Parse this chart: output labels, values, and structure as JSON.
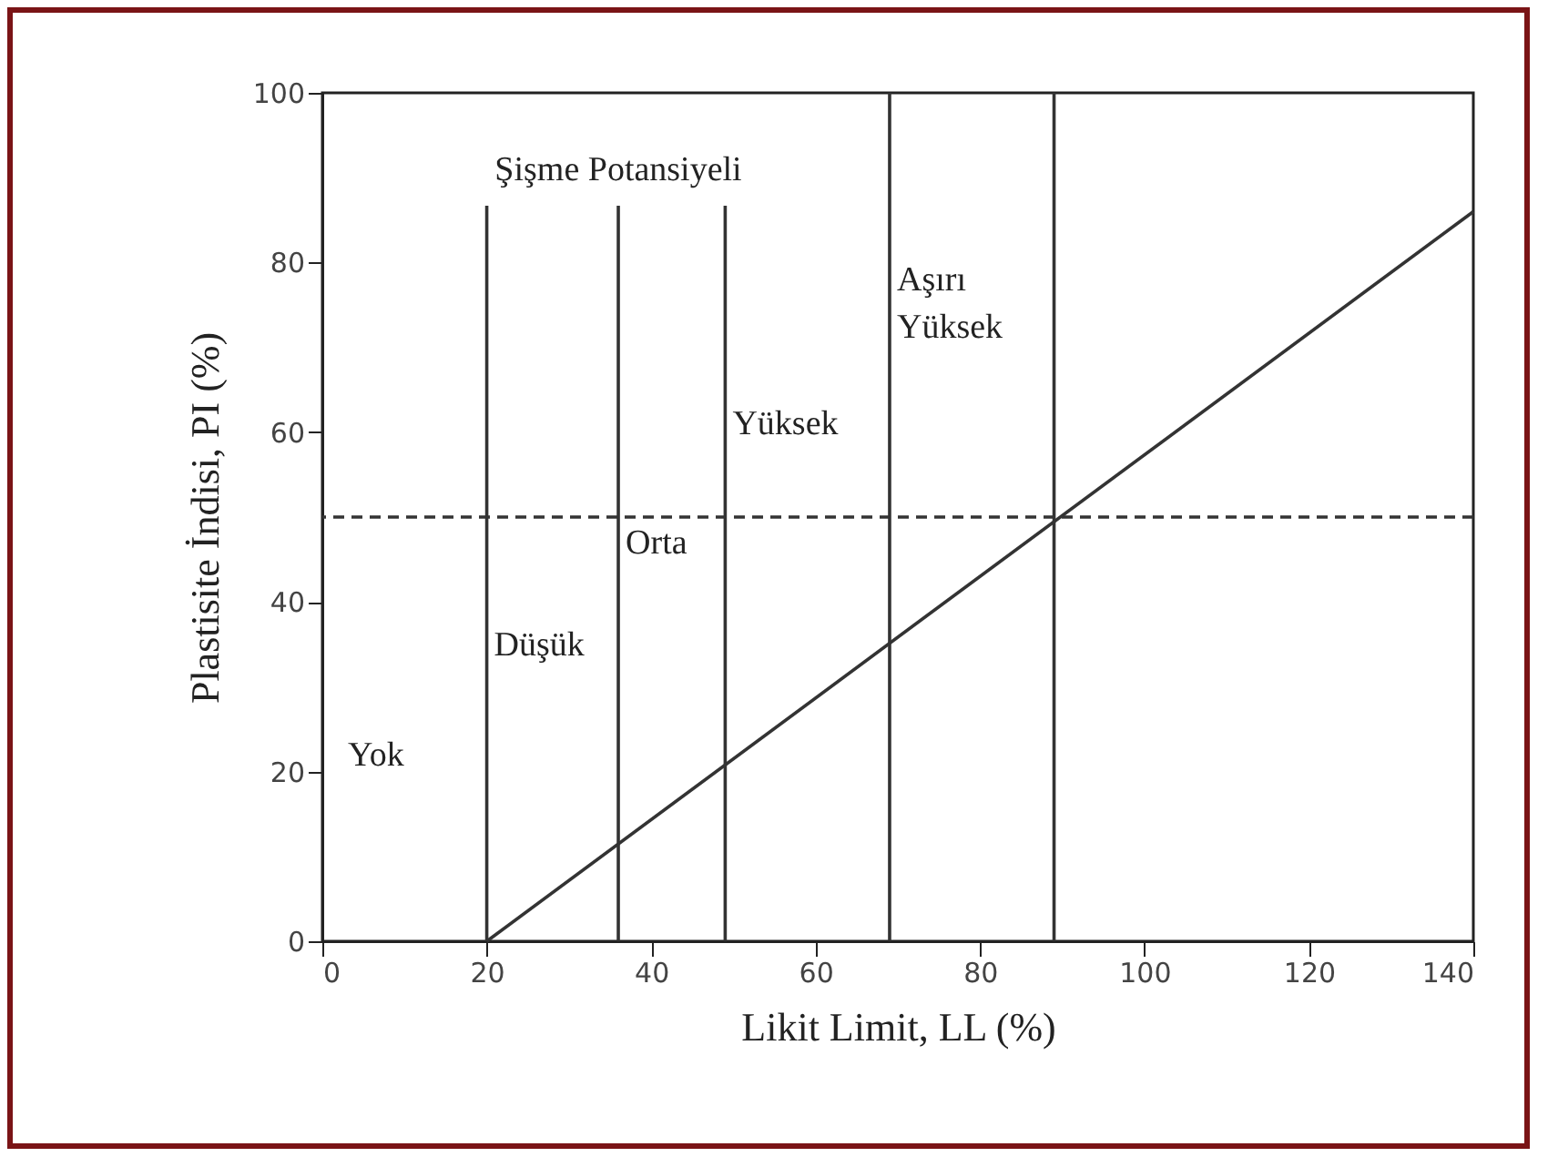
{
  "chart_data": {
    "type": "line",
    "xlabel": "Likit Limit, LL (%)",
    "ylabel": "Plastisite İndisi, PI (%)",
    "x": [
      20,
      140
    ],
    "series": [
      {
        "color": "#333333",
        "values": [
          0,
          86
        ]
      }
    ],
    "xlim": [
      0,
      140
    ],
    "ylim": [
      0,
      100
    ],
    "xticks": [
      0,
      20,
      40,
      60,
      80,
      100,
      120,
      140
    ],
    "yticks": [
      0,
      20,
      40,
      60,
      80,
      100
    ],
    "grid": false,
    "line_style": "solid",
    "marker": "none",
    "ref_lines": [
      {
        "axis": "x",
        "value": 20,
        "color": "#333333",
        "line_style": "solid"
      },
      {
        "axis": "x",
        "value": 36,
        "color": "#333333",
        "line_style": "solid"
      },
      {
        "axis": "x",
        "value": 49,
        "color": "#333333",
        "line_style": "solid"
      },
      {
        "axis": "x",
        "value": 69,
        "color": "#333333",
        "line_style": "solid"
      },
      {
        "axis": "x",
        "value": 89,
        "color": "#333333",
        "line_style": "solid"
      },
      {
        "axis": "y",
        "value": 50,
        "color": "#333333",
        "line_style": "dashed"
      }
    ],
    "annotations": [
      "Şişme Potansiyeli",
      "Yok",
      "Düşük",
      "Orta",
      "Yüksek",
      "Aşırı\nYüksek"
    ]
  }
}
